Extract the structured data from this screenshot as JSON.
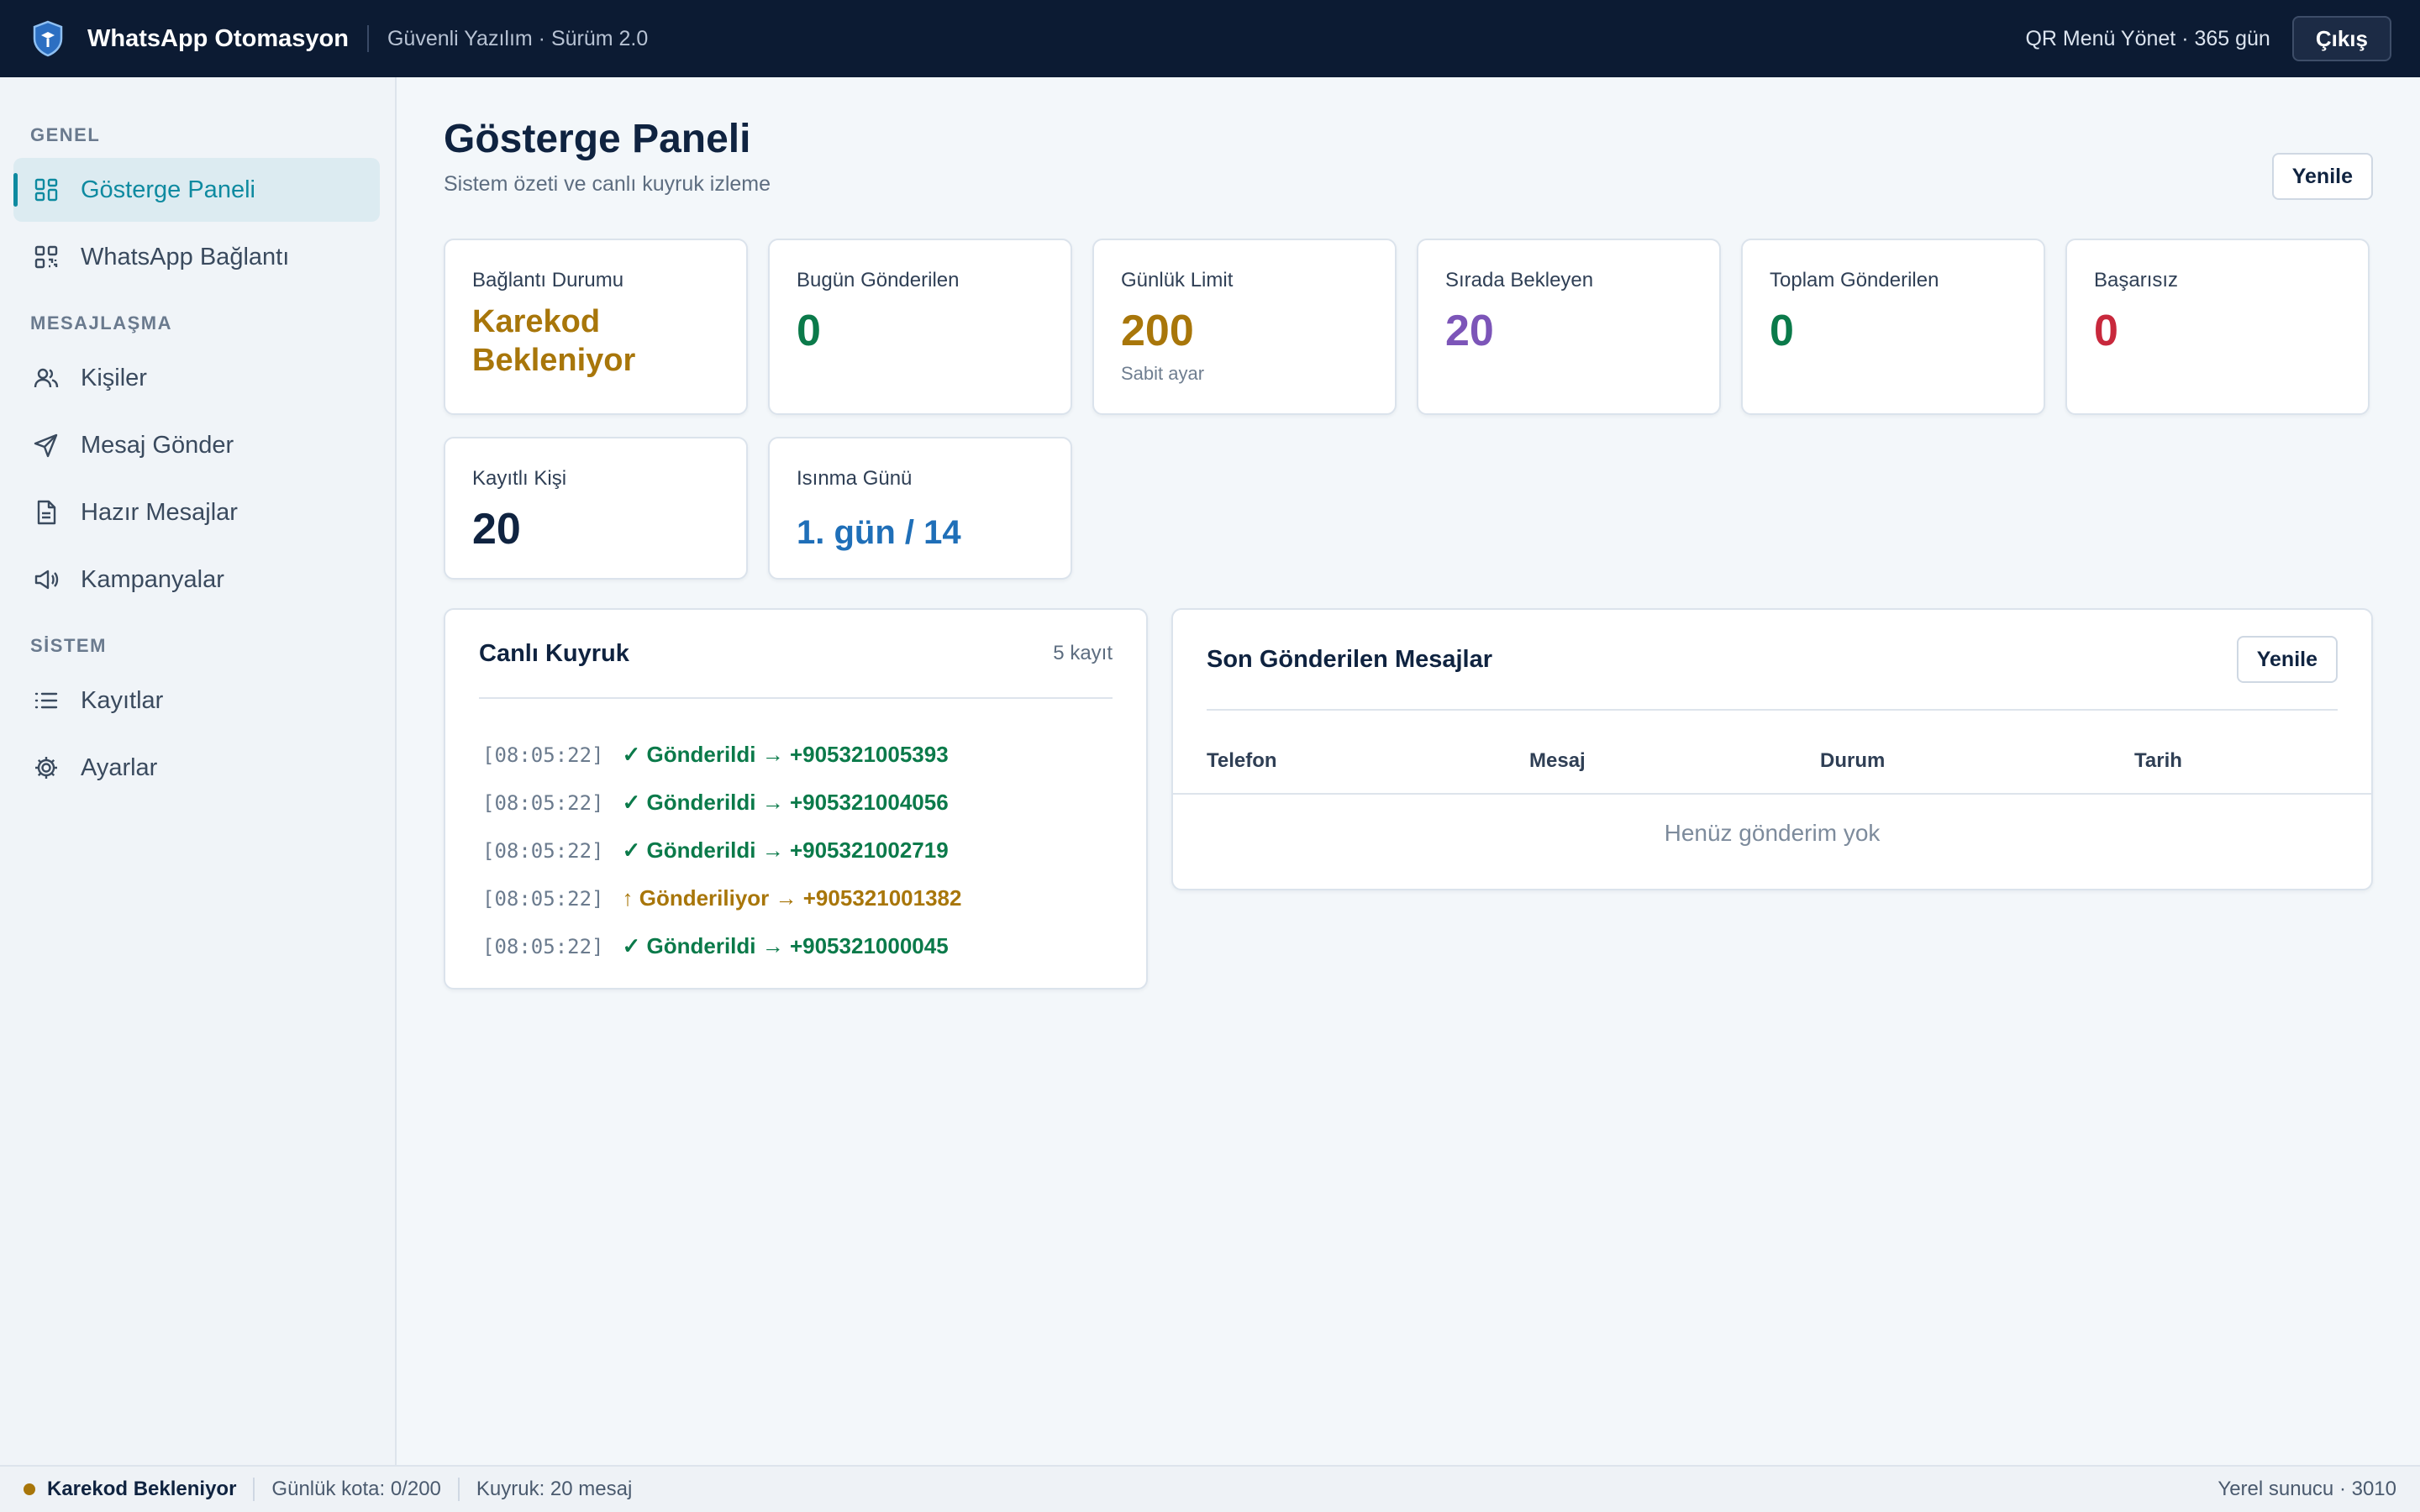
{
  "header": {
    "app_title": "WhatsApp Otomasyon",
    "subtitle": "Güvenli Yazılım · Sürüm 2.0",
    "license": "QR Menü Yönet · 365 gün",
    "logout_label": "Çıkış"
  },
  "sidebar": {
    "sections": [
      {
        "label": "GENEL",
        "items": [
          {
            "label": "Gösterge Paneli",
            "icon": "dashboard-icon",
            "active": true
          },
          {
            "label": "WhatsApp Bağlantı",
            "icon": "qr-icon"
          }
        ]
      },
      {
        "label": "MESAJLAŞMA",
        "items": [
          {
            "label": "Kişiler",
            "icon": "users-icon"
          },
          {
            "label": "Mesaj Gönder",
            "icon": "send-icon"
          },
          {
            "label": "Hazır Mesajlar",
            "icon": "document-icon"
          },
          {
            "label": "Kampanyalar",
            "icon": "megaphone-icon"
          }
        ]
      },
      {
        "label": "SİSTEM",
        "items": [
          {
            "label": "Kayıtlar",
            "icon": "list-icon"
          },
          {
            "label": "Ayarlar",
            "icon": "gear-icon"
          }
        ]
      }
    ]
  },
  "page": {
    "title": "Gösterge Paneli",
    "subtitle": "Sistem özeti ve canlı kuyruk izleme",
    "refresh_label": "Yenile"
  },
  "stats": [
    {
      "label": "Bağlantı Durumu",
      "value": "Karekod Bekleniyor",
      "color": "#a8760a"
    },
    {
      "label": "Bugün Gönderilen",
      "value": "0",
      "color": "#0b7a4a"
    },
    {
      "label": "Günlük Limit",
      "value": "200",
      "hint": "Sabit ayar",
      "color": "#a8760a"
    },
    {
      "label": "Sırada Bekleyen",
      "value": "20",
      "color": "#7c55b8"
    },
    {
      "label": "Toplam Gönderilen",
      "value": "0",
      "color": "#0b7a4a"
    },
    {
      "label": "Başarısız",
      "value": "0",
      "color": "#c8283c"
    },
    {
      "label": "Kayıtlı Kişi",
      "value": "20",
      "color": "#0f2340"
    },
    {
      "label": "Isınma Günü",
      "value": "1. gün / 14",
      "color": "#1f6fb8"
    }
  ],
  "queue": {
    "title": "Canlı Kuyruk",
    "count": "5 kayıt",
    "rows": [
      {
        "time": "[08:05:22]",
        "text": "✓ Gönderildi → +905321005393",
        "status": "sent"
      },
      {
        "time": "[08:05:22]",
        "text": "✓ Gönderildi → +905321004056",
        "status": "sent"
      },
      {
        "time": "[08:05:22]",
        "text": "✓ Gönderildi → +905321002719",
        "status": "sent"
      },
      {
        "time": "[08:05:22]",
        "text": "↑ Gönderiliyor → +905321001382",
        "status": "sending"
      },
      {
        "time": "[08:05:22]",
        "text": "✓ Gönderildi → +905321000045",
        "status": "sent"
      }
    ]
  },
  "recent": {
    "title": "Son Gönderilen Mesajlar",
    "refresh_label": "Yenile",
    "columns": [
      "Telefon",
      "Mesaj",
      "Durum",
      "Tarih"
    ],
    "empty_text": "Henüz gönderim yok"
  },
  "statusbar": {
    "connection": "Karekod Bekleniyor",
    "quota": "Günlük kota: 0/200",
    "queue": "Kuyruk: 20 mesaj",
    "server": "Yerel sunucu · 3010"
  },
  "colors": {
    "topbar": "#0c1b33",
    "accent": "#0e8aa0",
    "success": "#0b7a4a",
    "warning": "#a8760a",
    "danger": "#c8283c"
  }
}
